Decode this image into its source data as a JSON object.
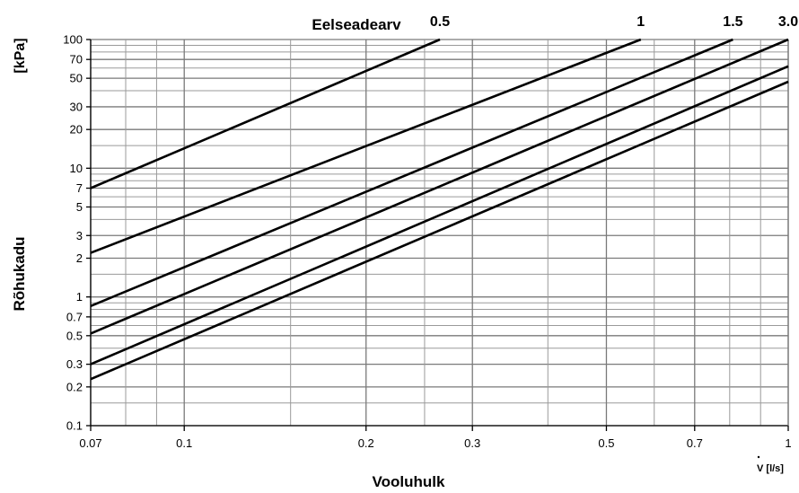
{
  "chart_data": {
    "type": "line",
    "xscale": "log",
    "yscale": "log",
    "xlim": [
      0.07,
      1
    ],
    "ylim": [
      0.1,
      100
    ],
    "x_ticks": [
      0.07,
      0.1,
      0.2,
      0.3,
      0.5,
      0.7,
      1
    ],
    "x_tick_labels": [
      "0.07",
      "0.1",
      "0.2",
      "0.3",
      "0.5",
      "0.7",
      "1"
    ],
    "y_ticks": [
      0.1,
      0.2,
      0.3,
      0.5,
      0.7,
      1,
      2,
      3,
      5,
      7,
      10,
      20,
      30,
      50,
      70,
      100
    ],
    "y_tick_labels": [
      "0.1",
      "0.2",
      "0.3",
      "0.5",
      "0.7",
      "1",
      "2",
      "3",
      "5",
      "7",
      "10",
      "20",
      "30",
      "50",
      "70",
      "100"
    ],
    "x_minor_grid": [
      0.08,
      0.09,
      0.15,
      0.25,
      0.4,
      0.6,
      0.8,
      0.9
    ],
    "y_minor_grid": [
      0.15,
      0.4,
      0.6,
      0.8,
      0.9,
      1.5,
      4,
      6,
      8,
      9,
      15,
      40,
      60,
      80,
      90
    ],
    "grid": true,
    "title": "Eelseadearv",
    "xlabel": "Vooluhulk",
    "x_unit": "V [l/s]",
    "ylabel": "Rõhukadu",
    "y_unit": "[kPa]",
    "preset_labels": [
      {
        "text": "0.5",
        "x": 0.265
      },
      {
        "text": "1",
        "x": 0.57
      },
      {
        "text": "1.5",
        "x": 0.81
      },
      {
        "text": "3.0",
        "x": 1.0
      }
    ],
    "series": [
      {
        "values": [
          [
            0.07,
            7
          ],
          [
            0.265,
            100
          ]
        ]
      },
      {
        "values": [
          [
            0.07,
            2.2
          ],
          [
            0.57,
            100
          ]
        ]
      },
      {
        "values": [
          [
            0.07,
            0.85
          ],
          [
            0.81,
            100
          ]
        ]
      },
      {
        "values": [
          [
            0.07,
            0.52
          ],
          [
            1.0,
            100
          ]
        ]
      },
      {
        "values": [
          [
            0.07,
            0.3
          ],
          [
            1.0,
            62
          ]
        ]
      },
      {
        "values": [
          [
            0.07,
            0.23
          ],
          [
            1.0,
            47
          ]
        ]
      }
    ]
  }
}
